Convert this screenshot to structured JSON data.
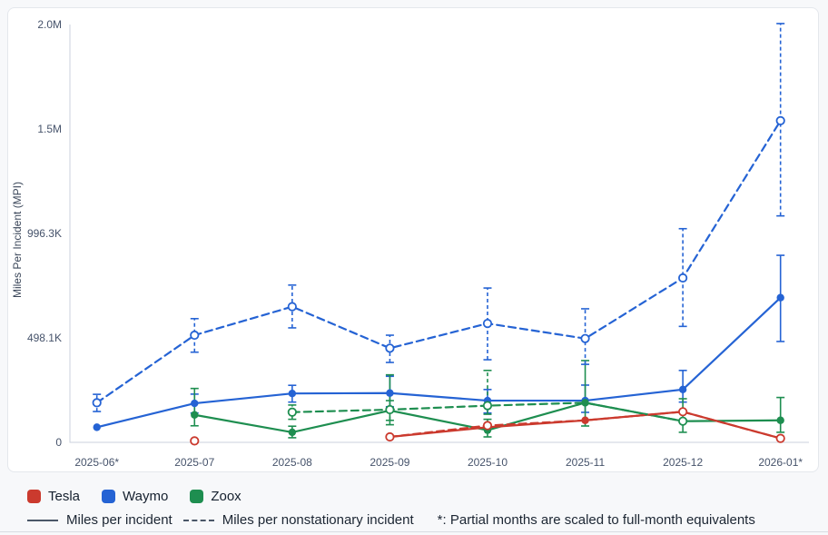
{
  "window": {
    "background": "#f7f8fa",
    "card_background": "#ffffff",
    "card_border": "#e4e7ec"
  },
  "chart_data": {
    "type": "line",
    "title": "",
    "xlabel": "",
    "ylabel": "Miles Per Incident (MPI)",
    "grid": false,
    "axis_color": "#cbd2dd",
    "tick_color": "#46536b",
    "x_categories": [
      "2025-06*",
      "2025-07",
      "2025-08",
      "2025-09",
      "2025-10",
      "2025-11",
      "2025-12",
      "2026-01*"
    ],
    "ylim": [
      0,
      1992600
    ],
    "yticks": [
      {
        "value": 0,
        "label": "0"
      },
      {
        "value": 498100,
        "label": "498.1K"
      },
      {
        "value": 996300,
        "label": "996.3K"
      },
      {
        "value": 1494400,
        "label": "1.5M"
      },
      {
        "value": 1992600,
        "label": "2.0M"
      }
    ],
    "series": [
      {
        "name": "Waymo — Miles per incident",
        "company": "Waymo",
        "color": "#2563d4",
        "style": "solid",
        "marker": "filled",
        "points": [
          {
            "x": 0,
            "v": 72000
          },
          {
            "x": 1,
            "v": 186000,
            "err": [
              140000,
              230000
            ]
          },
          {
            "x": 2,
            "v": 233000,
            "err": [
              192000,
              272000
            ]
          },
          {
            "x": 3,
            "v": 235000,
            "err": [
              170000,
              315000
            ]
          },
          {
            "x": 4,
            "v": 199000,
            "err": [
              140000,
              252000
            ]
          },
          {
            "x": 5,
            "v": 199000,
            "err": [
              143000,
              273000
            ]
          },
          {
            "x": 6,
            "v": 252000,
            "err": [
              192000,
              343000
            ]
          },
          {
            "x": 7,
            "v": 690000,
            "err": [
              481000,
              892000
            ]
          }
        ]
      },
      {
        "name": "Zoox — Miles per incident",
        "company": "Zoox",
        "color": "#1e8e50",
        "style": "solid",
        "marker": "filled",
        "points": [
          {
            "x": 1,
            "v": 131000,
            "err": [
              79000,
              257000
            ]
          },
          {
            "x": 2,
            "v": 48000,
            "err": [
              22000,
              77000
            ]
          },
          {
            "x": 3,
            "v": 152000,
            "err": [
              84000,
              322000
            ],
            "m": "none"
          },
          {
            "x": 4,
            "v": 58000,
            "err": [
              26000,
              110000
            ]
          },
          {
            "x": 5,
            "v": 189000,
            "err": [
              78000,
              390000
            ]
          },
          {
            "x": 6,
            "v": 101000,
            "err": [
              48000,
              208000
            ],
            "m": "none"
          },
          {
            "x": 7,
            "v": 105000,
            "err": [
              48000,
              214000
            ]
          }
        ]
      },
      {
        "name": "Tesla — Miles per incident",
        "company": "Tesla",
        "color": "#cb3a2e",
        "style": "solid",
        "marker": "filled",
        "points": [
          {
            "x": 3,
            "v": 26000,
            "m": "none"
          },
          {
            "x": 4,
            "v": 72000,
            "m": "none"
          },
          {
            "x": 5,
            "v": 105000
          },
          {
            "x": 6,
            "v": 146000,
            "m": "none"
          },
          {
            "x": 7,
            "v": 19000,
            "m": "none"
          }
        ]
      },
      {
        "name": "Waymo — Miles per nonstationary incident",
        "company": "Waymo",
        "color": "#2563d4",
        "style": "dashed",
        "marker": "open",
        "points": [
          {
            "x": 0,
            "v": 189000,
            "err": [
              147000,
              229000
            ]
          },
          {
            "x": 1,
            "v": 511000,
            "err": [
              430000,
              590000
            ]
          },
          {
            "x": 2,
            "v": 647000,
            "err": [
              546000,
              750000
            ]
          },
          {
            "x": 3,
            "v": 449000,
            "err": [
              381000,
              511000
            ]
          },
          {
            "x": 4,
            "v": 567000,
            "err": [
              394000,
              736000
            ]
          },
          {
            "x": 5,
            "v": 495000,
            "err": [
              372000,
              637000
            ]
          },
          {
            "x": 6,
            "v": 784000,
            "err": [
              553000,
              1019000
            ]
          },
          {
            "x": 7,
            "v": 1534000,
            "err": [
              1080000,
              1997000
            ]
          }
        ]
      },
      {
        "name": "Zoox — Miles per nonstationary incident",
        "company": "Zoox",
        "color": "#1e8e50",
        "style": "dashed",
        "marker": "open",
        "points": [
          {
            "x": 2,
            "v": 144000,
            "err": [
              110000,
              178000
            ]
          },
          {
            "x": 3,
            "v": 156000,
            "err": [
              105000,
              199000
            ]
          },
          {
            "x": 4,
            "v": 175000,
            "err": [
              134000,
              343000
            ]
          },
          {
            "x": 5,
            "v": 189000,
            "m": "none"
          },
          {
            "x": 6,
            "v": 101000
          }
        ]
      },
      {
        "name": "Tesla — Miles per nonstationary incident",
        "company": "Tesla",
        "color": "#cb3a2e",
        "style": "dashed",
        "marker": "open",
        "points": [
          {
            "x": 1,
            "v": 7000
          },
          {
            "x": 3,
            "v": 26000
          },
          {
            "x": 4,
            "v": 80000
          },
          {
            "x": 5,
            "v": 105000,
            "m": "none"
          },
          {
            "x": 6,
            "v": 146000
          },
          {
            "x": 7,
            "v": 19000
          }
        ]
      }
    ],
    "legend": {
      "position": "bottom",
      "entries": [
        {
          "label": "Tesla",
          "color": "#cb3a2e"
        },
        {
          "label": "Waymo",
          "color": "#2563d4"
        },
        {
          "label": "Zoox",
          "color": "#1e8e50"
        }
      ]
    },
    "footer": {
      "solid_label": "Miles per incident",
      "dashed_label": "Miles per nonstationary incident",
      "note": "*: Partial months are scaled to full-month equivalents",
      "sample_color": "#4b5768"
    }
  }
}
